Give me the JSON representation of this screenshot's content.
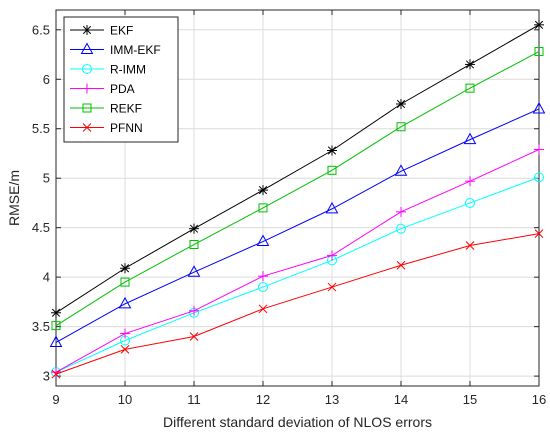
{
  "chart_data": {
    "type": "line",
    "title": "",
    "xlabel": "Different standard deviation of NLOS errors",
    "ylabel": "RMSE/m",
    "xlim": [
      9,
      16
    ],
    "ylim": [
      2.9,
      6.7
    ],
    "x": [
      9,
      10,
      11,
      12,
      13,
      14,
      15,
      16
    ],
    "x_ticks": [
      "9",
      "10",
      "11",
      "12",
      "13",
      "14",
      "15",
      "16"
    ],
    "y_ticks": [
      3,
      3.5,
      4,
      4.5,
      5,
      5.5,
      6,
      6.5
    ],
    "y_tick_labels": [
      "3",
      "3.5",
      "4",
      "4.5",
      "5",
      "5.5",
      "6",
      "6.5"
    ],
    "grid": true,
    "legend_position": "top-left",
    "series": [
      {
        "name": "EKF",
        "color": "#000000",
        "marker": "asterisk",
        "values": [
          3.64,
          4.09,
          4.49,
          4.88,
          5.28,
          5.75,
          6.15,
          6.55
        ]
      },
      {
        "name": "IMM-EKF",
        "color": "#0000ff",
        "marker": "triangle",
        "values": [
          3.34,
          3.73,
          4.05,
          4.36,
          4.69,
          5.07,
          5.39,
          5.7
        ]
      },
      {
        "name": "R-IMM",
        "color": "#00ffff",
        "marker": "circle",
        "values": [
          3.04,
          3.36,
          3.64,
          3.9,
          4.17,
          4.49,
          4.75,
          5.01
        ]
      },
      {
        "name": "PDA",
        "color": "#ff00ff",
        "marker": "plus",
        "values": [
          3.04,
          3.43,
          3.66,
          4.01,
          4.22,
          4.66,
          4.97,
          5.29
        ]
      },
      {
        "name": "REKF",
        "color": "#00c000",
        "marker": "square",
        "values": [
          3.51,
          3.95,
          4.33,
          4.7,
          5.08,
          5.52,
          5.91,
          6.28
        ]
      },
      {
        "name": "PFNN",
        "color": "#ff0000",
        "marker": "x",
        "values": [
          3.02,
          3.27,
          3.4,
          3.68,
          3.9,
          4.12,
          4.32,
          4.44
        ]
      }
    ]
  }
}
